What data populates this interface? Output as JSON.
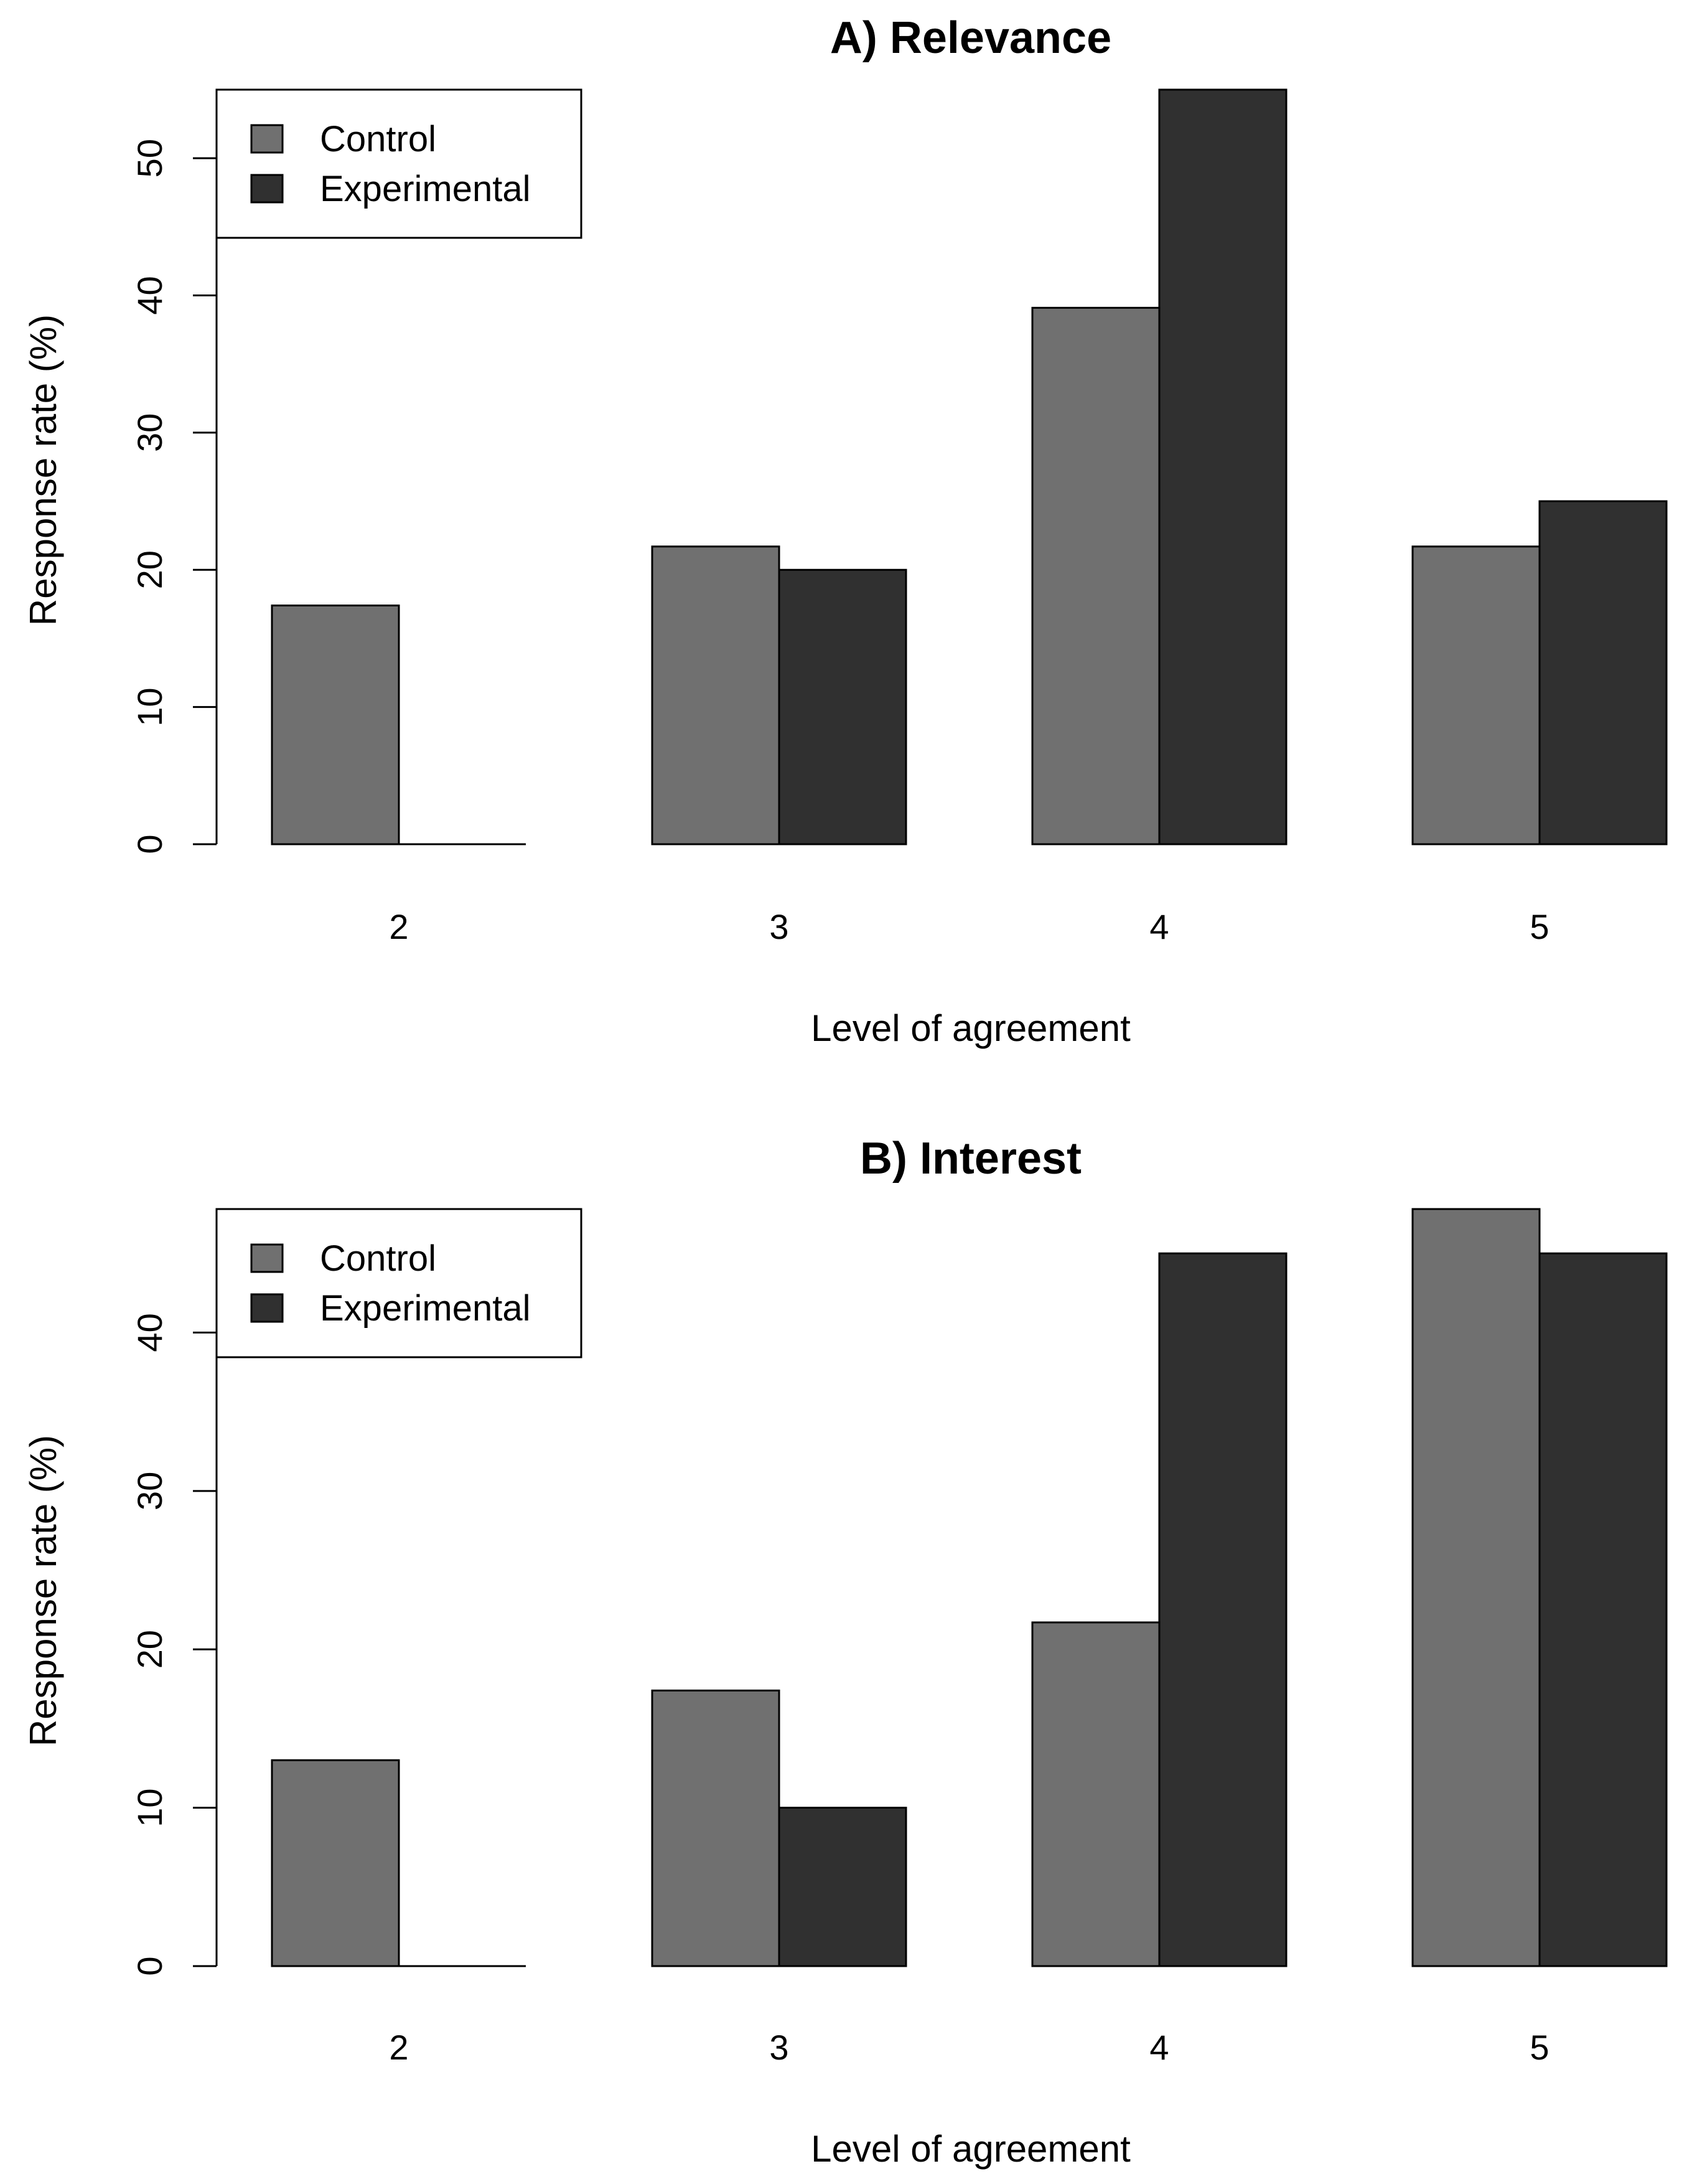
{
  "chart_data": [
    {
      "type": "bar",
      "title": "A) Relevance",
      "xlabel": "Level of agreement",
      "ylabel": "Response rate (%)",
      "categories": [
        "2",
        "3",
        "4",
        "5"
      ],
      "yticks": [
        "0",
        "10",
        "20",
        "30",
        "40",
        "50"
      ],
      "ylim": [
        0,
        55
      ],
      "grid": false,
      "legend_position": "top-left",
      "series": [
        {
          "name": "Control",
          "color": "#707070",
          "values": [
            17.4,
            21.7,
            39.1,
            21.7
          ]
        },
        {
          "name": "Experimental",
          "color": "#303030",
          "values": [
            0,
            20,
            55,
            25
          ]
        }
      ]
    },
    {
      "type": "bar",
      "title": "B) Interest",
      "xlabel": "Level of agreement",
      "ylabel": "Response rate (%)",
      "categories": [
        "2",
        "3",
        "4",
        "5"
      ],
      "yticks": [
        "0",
        "10",
        "20",
        "30",
        "40"
      ],
      "ylim": [
        0,
        47.8
      ],
      "grid": false,
      "legend_position": "top-left",
      "series": [
        {
          "name": "Control",
          "color": "#707070",
          "values": [
            13,
            17.4,
            21.7,
            47.8
          ]
        },
        {
          "name": "Experimental",
          "color": "#303030",
          "values": [
            0,
            10,
            45,
            45
          ]
        }
      ]
    }
  ]
}
